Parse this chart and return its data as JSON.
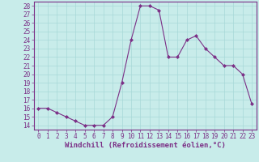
{
  "x": [
    0,
    1,
    2,
    3,
    4,
    5,
    6,
    7,
    8,
    9,
    10,
    11,
    12,
    13,
    14,
    15,
    16,
    17,
    18,
    19,
    20,
    21,
    22,
    23
  ],
  "y": [
    16,
    16,
    15.5,
    15,
    14.5,
    14,
    14,
    14,
    15,
    19,
    24,
    28,
    28,
    27.5,
    22,
    22,
    24,
    24.5,
    23,
    22,
    21,
    21,
    20,
    16.5
  ],
  "line_color": "#7b2f86",
  "marker": "D",
  "marker_size": 2.0,
  "bg_color": "#c8ecea",
  "grid_color": "#a8d8d8",
  "xlabel": "Windchill (Refroidissement éolien,°C)",
  "xlabel_fontsize": 6.5,
  "ylabel_ticks": [
    14,
    15,
    16,
    17,
    18,
    19,
    20,
    21,
    22,
    23,
    24,
    25,
    26,
    27,
    28
  ],
  "xlim": [
    -0.5,
    23.5
  ],
  "ylim": [
    13.5,
    28.5
  ],
  "tick_fontsize": 5.5,
  "axis_color": "#7b2f86"
}
